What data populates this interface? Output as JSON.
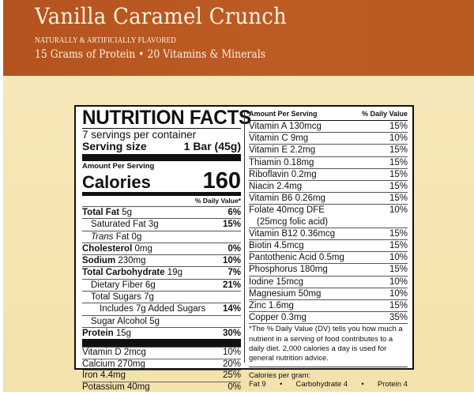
{
  "header": {
    "title": "Vanilla Caramel Crunch",
    "flavor_note": "NATURALLY & ARTIFICIALLY FLAVORED",
    "tagline": "15 Grams of Protein • 20 Vitamins & Minerals"
  },
  "colors": {
    "banner": "#b8561f",
    "banner_text": "#fbf1e0",
    "background": "#f5e6b4",
    "panel": "#ffffff",
    "ink": "#111111"
  },
  "label": {
    "title": "NUTRITION FACTS",
    "servings_per_container": "7 servings per container",
    "serving_size_label": "Serving size",
    "serving_size_value": "1 Bar (45g)",
    "amount_per_serving": "Amount Per Serving",
    "calories_label": "Calories",
    "calories_value": "160",
    "daily_value_header": "% Daily Value*",
    "nutrients": [
      {
        "name": "Total Fat",
        "amount": "5g",
        "dv": "6%"
      },
      {
        "name": "Saturated Fat",
        "amount": "3g",
        "dv": "15%"
      },
      {
        "name": "Trans",
        "amount": "Fat 0g",
        "dv": ""
      },
      {
        "name": "Cholesterol",
        "amount": "0mg",
        "dv": "0%"
      },
      {
        "name": "Sodium",
        "amount": "230mg",
        "dv": "10%"
      },
      {
        "name": "Total Carbohydrate",
        "amount": "19g",
        "dv": "7%"
      },
      {
        "name": "Dietary Fiber",
        "amount": "6g",
        "dv": "21%"
      },
      {
        "name": "Total Sugars",
        "amount": "7g",
        "dv": ""
      },
      {
        "name": "Includes 7g Added Sugars",
        "amount": "",
        "dv": "14%"
      },
      {
        "name": "Sugar Alcohol",
        "amount": "5g",
        "dv": ""
      },
      {
        "name": "Protein",
        "amount": "15g",
        "dv": "30%"
      }
    ],
    "vitamins_left": [
      {
        "name": "Vitamin D 2mcg",
        "dv": "10%"
      },
      {
        "name": "Calcium 270mg",
        "dv": "20%"
      },
      {
        "name": "Iron 4.4mg",
        "dv": "25%"
      },
      {
        "name": "Potassium 40mg",
        "dv": "0%"
      }
    ],
    "right_header": {
      "amount": "Amount Per Serving",
      "dv": "% Daily Value"
    },
    "vitamins_right": [
      {
        "name": "Vitamin A  130mcg",
        "dv": "15%"
      },
      {
        "name": "Vitamin C  9mg",
        "dv": "10%"
      },
      {
        "name": "Vitamin E  2.2mg",
        "dv": "15%"
      },
      {
        "name": "Thiamin  0.18mg",
        "dv": "15%"
      },
      {
        "name": "Riboflavin  0.2mg",
        "dv": "15%"
      },
      {
        "name": "Niacin  2.4mg",
        "dv": "15%"
      },
      {
        "name": "Vitamin B6  0.26mg",
        "dv": "15%"
      },
      {
        "name": "Folate  40mcg DFE",
        "dv": "10%"
      },
      {
        "name": "(25mcg folic acid)",
        "dv": ""
      },
      {
        "name": "Vitamin B12  0.36mcg",
        "dv": "15%"
      },
      {
        "name": "Biotin  4.5mcg",
        "dv": "15%"
      },
      {
        "name": "Pantothenic Acid  0.5mg",
        "dv": "10%"
      },
      {
        "name": "Phosphorus  180mg",
        "dv": "15%"
      },
      {
        "name": "Iodine  15mcg",
        "dv": "10%"
      },
      {
        "name": "Magnesium  50mg",
        "dv": "10%"
      },
      {
        "name": "Zinc  1.6mg",
        "dv": "15%"
      },
      {
        "name": "Copper  0.3mg",
        "dv": "35%"
      }
    ],
    "footnote": "*The % Daily Value (DV) tells you how much a nutrient in a serving of food contributes to a daily diet. 2,000 calories a day is used for general nutrition advice.",
    "calories_per_gram_label": "Calories per gram:",
    "calories_per_gram": {
      "fat": "Fat 9",
      "carbohydrate": "Carbohydrate 4",
      "protein": "Protein 4",
      "bullet": "•"
    }
  }
}
